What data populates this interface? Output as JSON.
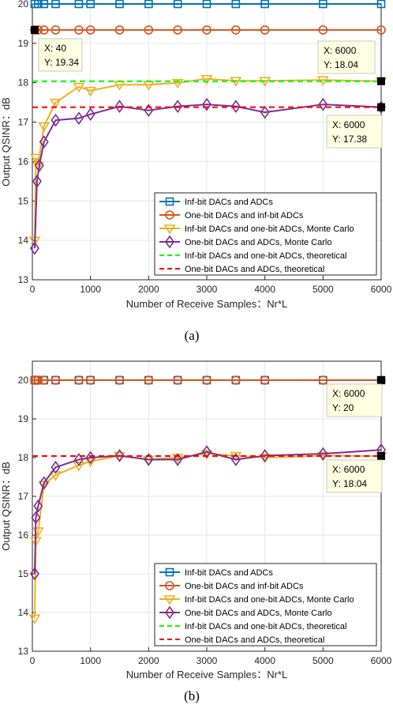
{
  "chart_data": [
    {
      "type": "line",
      "caption": "(a)",
      "xlabel": "Number of Receive Samples：Nr*L",
      "ylabel": "Output QSINR：dB",
      "xlim": [
        0,
        6000
      ],
      "ylim": [
        13,
        20
      ],
      "xticks": [
        "0",
        "1000",
        "2000",
        "3000",
        "4000",
        "5000",
        "6000"
      ],
      "yticks": [
        "13",
        "14",
        "15",
        "16",
        "17",
        "18",
        "19",
        "20"
      ],
      "grid": true,
      "legend_position": "bottom-right",
      "series": [
        {
          "name": "Inf-bit DACs and ADCs",
          "color": "#0072BD",
          "marker": "square",
          "style": "solid",
          "x": [
            40,
            100,
            200,
            400,
            800,
            1000,
            1500,
            2000,
            2500,
            3000,
            3500,
            4000,
            5000,
            6000
          ],
          "y": [
            20,
            20,
            20,
            20,
            20,
            20,
            20,
            20,
            20,
            20,
            20,
            20,
            20,
            20
          ]
        },
        {
          "name": "One-bit DACs and inf-bit ADCs",
          "color": "#D95319",
          "marker": "circle",
          "style": "solid",
          "x": [
            40,
            100,
            200,
            400,
            800,
            1000,
            1500,
            2000,
            2500,
            3000,
            3500,
            4000,
            5000,
            6000
          ],
          "y": [
            19.34,
            19.34,
            19.34,
            19.34,
            19.34,
            19.34,
            19.34,
            19.34,
            19.34,
            19.34,
            19.34,
            19.34,
            19.34,
            19.34
          ]
        },
        {
          "name": "Inf-bit DACs and one-bit ADCs, Monte Carlo",
          "color": "#EDB120",
          "marker": "triangle-down",
          "style": "solid",
          "x": [
            40,
            60,
            100,
            200,
            400,
            800,
            1000,
            1500,
            2000,
            2500,
            3000,
            3500,
            4000,
            5000,
            6000
          ],
          "y": [
            14.0,
            16.1,
            15.9,
            16.9,
            17.5,
            17.9,
            17.8,
            17.95,
            17.95,
            18.0,
            18.1,
            18.05,
            18.05,
            18.07,
            18.04
          ]
        },
        {
          "name": "One-bit DACs and ADCs, Monte Carlo",
          "color": "#7E2F8E",
          "marker": "diamond",
          "style": "solid",
          "x": [
            40,
            80,
            120,
            200,
            400,
            800,
            1000,
            1500,
            2000,
            2500,
            3000,
            3500,
            4000,
            5000,
            6000
          ],
          "y": [
            13.8,
            15.5,
            15.9,
            16.5,
            17.05,
            17.1,
            17.2,
            17.4,
            17.3,
            17.4,
            17.45,
            17.4,
            17.25,
            17.45,
            17.38
          ]
        },
        {
          "name": "Inf-bit DACs and one-bit ADCs, theoretical",
          "color": "#00FF00",
          "marker": "none",
          "style": "dashed",
          "x": [
            0,
            6000
          ],
          "y": [
            18.04,
            18.04
          ]
        },
        {
          "name": "One-bit DACs and ADCs, theoretical",
          "color": "#FF0000",
          "marker": "none",
          "style": "dashed",
          "x": [
            0,
            6000
          ],
          "y": [
            17.38,
            17.38
          ]
        }
      ],
      "datatips": [
        {
          "x": 40,
          "y": 19.34,
          "xtext": "X: 40",
          "ytext": "Y: 19.34",
          "box": "below-right"
        },
        {
          "x": 6000,
          "y": 18.04,
          "xtext": "X: 6000",
          "ytext": "Y: 18.04",
          "box": "above-left"
        },
        {
          "x": 6000,
          "y": 17.38,
          "xtext": "X: 6000",
          "ytext": "Y: 17.38",
          "box": "below-left"
        }
      ]
    },
    {
      "type": "line",
      "caption": "(b)",
      "xlabel": "Number of Receive Samples：Nr*L",
      "ylabel": "Output QSINR：dB",
      "xlim": [
        0,
        6000
      ],
      "ylim": [
        13,
        20.5
      ],
      "xticks": [
        "0",
        "1000",
        "2000",
        "3000",
        "4000",
        "5000",
        "6000"
      ],
      "yticks": [
        "13",
        "14",
        "15",
        "16",
        "17",
        "18",
        "19",
        "20"
      ],
      "grid": true,
      "legend_position": "bottom-right",
      "series": [
        {
          "name": "Inf-bit DACs and ADCs",
          "color": "#0072BD",
          "marker": "square",
          "style": "solid",
          "x": [
            40,
            60,
            100,
            200,
            400,
            800,
            1000,
            1500,
            2000,
            2500,
            3000,
            3500,
            4000,
            5000,
            6000
          ],
          "y": [
            20,
            20,
            20,
            20,
            20,
            20,
            20,
            20,
            20,
            20,
            20,
            20,
            20,
            20,
            20
          ]
        },
        {
          "name": "One-bit DACs and inf-bit ADCs",
          "color": "#D95319",
          "marker": "circle",
          "style": "solid",
          "x": [
            40,
            60,
            100,
            200,
            400,
            800,
            1000,
            1500,
            2000,
            2500,
            3000,
            3500,
            4000,
            5000,
            6000
          ],
          "y": [
            20,
            20,
            20,
            20,
            20,
            20,
            20,
            20,
            20,
            20,
            20,
            20,
            20,
            20,
            20
          ]
        },
        {
          "name": "Inf-bit DACs and one-bit ADCs, Monte Carlo",
          "color": "#EDB120",
          "marker": "triangle-down",
          "style": "solid",
          "x": [
            40,
            60,
            100,
            200,
            400,
            800,
            1000,
            1500,
            2000,
            2500,
            3000,
            3500,
            4000,
            5000,
            6000
          ],
          "y": [
            13.85,
            15.85,
            16.1,
            17.3,
            17.55,
            17.8,
            17.9,
            18.05,
            17.95,
            18.0,
            18.1,
            18.05,
            18.0,
            18.05,
            18.04
          ]
        },
        {
          "name": "One-bit DACs and ADCs, Monte Carlo",
          "color": "#7E2F8E",
          "marker": "diamond",
          "style": "solid",
          "x": [
            40,
            60,
            100,
            200,
            400,
            800,
            1000,
            1500,
            2000,
            2500,
            3000,
            3500,
            4000,
            5000,
            6000
          ],
          "y": [
            15.0,
            16.45,
            16.75,
            17.35,
            17.75,
            17.95,
            18.0,
            18.05,
            17.95,
            17.95,
            18.15,
            17.95,
            18.05,
            18.1,
            18.2
          ]
        },
        {
          "name": "Inf-bit DACs and one-bit ADCs, theoretical",
          "color": "#00FF00",
          "marker": "none",
          "style": "dashed",
          "x": [
            0,
            6000
          ],
          "y": [
            18.04,
            18.04
          ]
        },
        {
          "name": "One-bit DACs and ADCs, theoretical",
          "color": "#FF0000",
          "marker": "none",
          "style": "dashed",
          "x": [
            0,
            6000
          ],
          "y": [
            18.04,
            18.04
          ]
        }
      ],
      "datatips": [
        {
          "x": 6000,
          "y": 20,
          "xtext": "X: 6000",
          "ytext": "Y: 20",
          "box": "below-left"
        },
        {
          "x": 6000,
          "y": 18.04,
          "xtext": "X: 6000",
          "ytext": "Y: 18.04",
          "box": "below-left"
        }
      ]
    }
  ]
}
